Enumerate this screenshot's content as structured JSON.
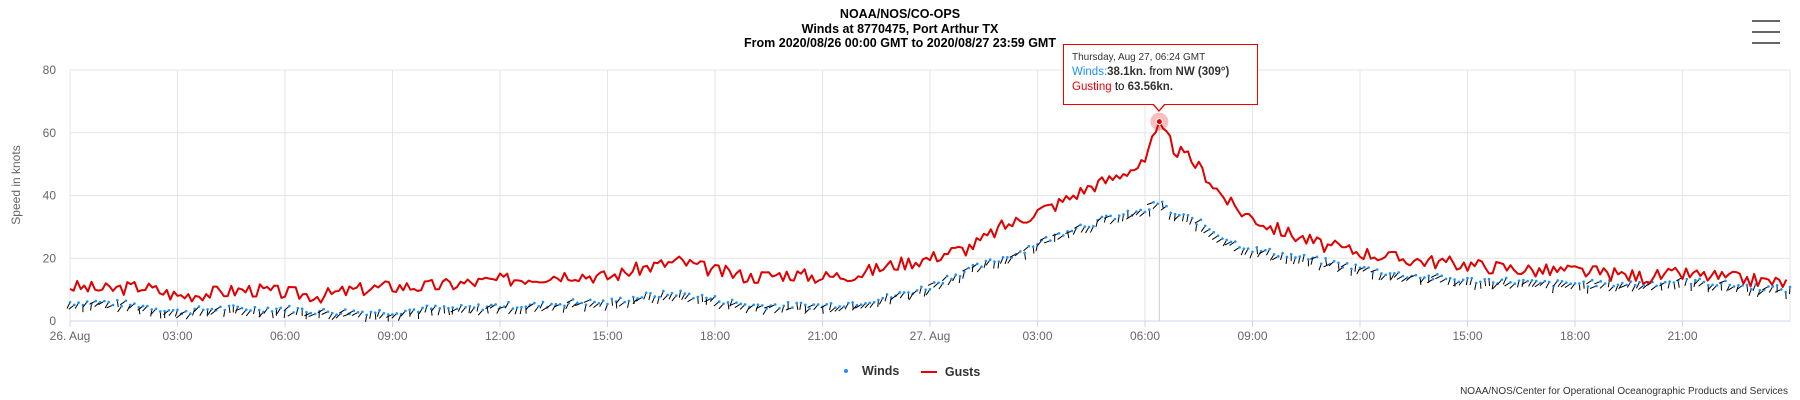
{
  "header": {
    "title": "NOAA/NOS/CO-OPS",
    "subtitle1": "Winds at 8770475, Port Arthur TX",
    "subtitle2": "From 2020/08/26 00:00 GMT to 2020/08/27 23:59 GMT"
  },
  "menu_icon": "hamburger-menu-icon",
  "credit": "NOAA/NOS/Center for Operational Oceanographic Products and Services",
  "tooltip": {
    "date": "Thursday, Aug 27, 06:24 GMT",
    "winds_label": "Winds:",
    "winds_value": "38.1kn.",
    "from_text": " from ",
    "direction": "NW (309°)",
    "gust_label": "Gusting",
    "gust_to": " to ",
    "gust_value": "63.56kn."
  },
  "legend": {
    "winds": "Winds",
    "gusts": "Gusts"
  },
  "colors": {
    "winds": "#1e90ff",
    "gusts": "#e00000",
    "arrows": "#000000",
    "grid": "#e6e6e6"
  },
  "chart_data": {
    "type": "line",
    "title": "NOAA/NOS/CO-OPS",
    "ylabel": "Speed in knots",
    "ylim": [
      0,
      80
    ],
    "yticks": [
      "0",
      "20",
      "40",
      "60",
      "80"
    ],
    "xrange_hours": [
      0,
      48
    ],
    "xticks": [
      "26. Aug",
      "03:00",
      "06:00",
      "09:00",
      "12:00",
      "15:00",
      "18:00",
      "21:00",
      "27. Aug",
      "03:00",
      "06:00",
      "09:00",
      "12:00",
      "15:00",
      "18:00",
      "21:00"
    ],
    "grid": true,
    "legend_position": "bottom-center",
    "highlight": {
      "x": 30.4,
      "y": 63.56
    },
    "series": [
      {
        "name": "Gusts",
        "x": [
          0,
          1,
          2,
          3,
          4,
          5,
          6,
          7,
          8,
          9,
          10,
          11,
          12,
          13,
          14,
          15,
          16,
          17,
          18,
          19,
          20,
          21,
          22,
          23,
          24,
          24.5,
          25,
          25.5,
          26,
          26.5,
          27,
          27.5,
          28,
          28.5,
          29,
          29.5,
          30,
          30.4,
          30.8,
          31.2,
          31.6,
          32,
          32.5,
          33,
          33.5,
          34,
          34.5,
          35,
          36,
          37,
          38,
          39,
          40,
          41,
          42,
          43,
          44,
          45,
          46,
          47,
          48
        ],
        "values": [
          11,
          10,
          11,
          8,
          9,
          10,
          9,
          8,
          10,
          11,
          11,
          12,
          13,
          14,
          15,
          14,
          17,
          19,
          16,
          14,
          15,
          14,
          15,
          18,
          20,
          22,
          23,
          26,
          30,
          32,
          35,
          37,
          40,
          43,
          45,
          48,
          50,
          63.56,
          55,
          52,
          48,
          42,
          36,
          33,
          30,
          28,
          26,
          24,
          22,
          20,
          19,
          18,
          17,
          16,
          16,
          15,
          14,
          15,
          14,
          13,
          12
        ]
      },
      {
        "name": "Winds",
        "x": [
          0,
          1,
          2,
          3,
          4,
          5,
          6,
          7,
          8,
          9,
          10,
          11,
          12,
          13,
          14,
          15,
          16,
          17,
          18,
          19,
          20,
          21,
          22,
          23,
          24,
          24.5,
          25,
          25.5,
          26,
          26.5,
          27,
          27.5,
          28,
          28.5,
          29,
          29.5,
          30,
          30.4,
          30.8,
          31.2,
          31.6,
          32,
          32.5,
          33,
          33.5,
          34,
          34.5,
          35,
          36,
          37,
          38,
          39,
          40,
          41,
          42,
          43,
          44,
          45,
          46,
          47,
          48
        ],
        "values": [
          6,
          6,
          5,
          3,
          4,
          4,
          4,
          3,
          3,
          3,
          4,
          4,
          5,
          5,
          6,
          6,
          8,
          9,
          7,
          5,
          5,
          5,
          6,
          8,
          11,
          14,
          16,
          18,
          20,
          22,
          25,
          27,
          30,
          31,
          33,
          34,
          35,
          38.1,
          34,
          33,
          31,
          28,
          25,
          23,
          22,
          21,
          20,
          19,
          17,
          15,
          14,
          13,
          13,
          12,
          12,
          12,
          12,
          13,
          12,
          11,
          10
        ]
      }
    ]
  }
}
